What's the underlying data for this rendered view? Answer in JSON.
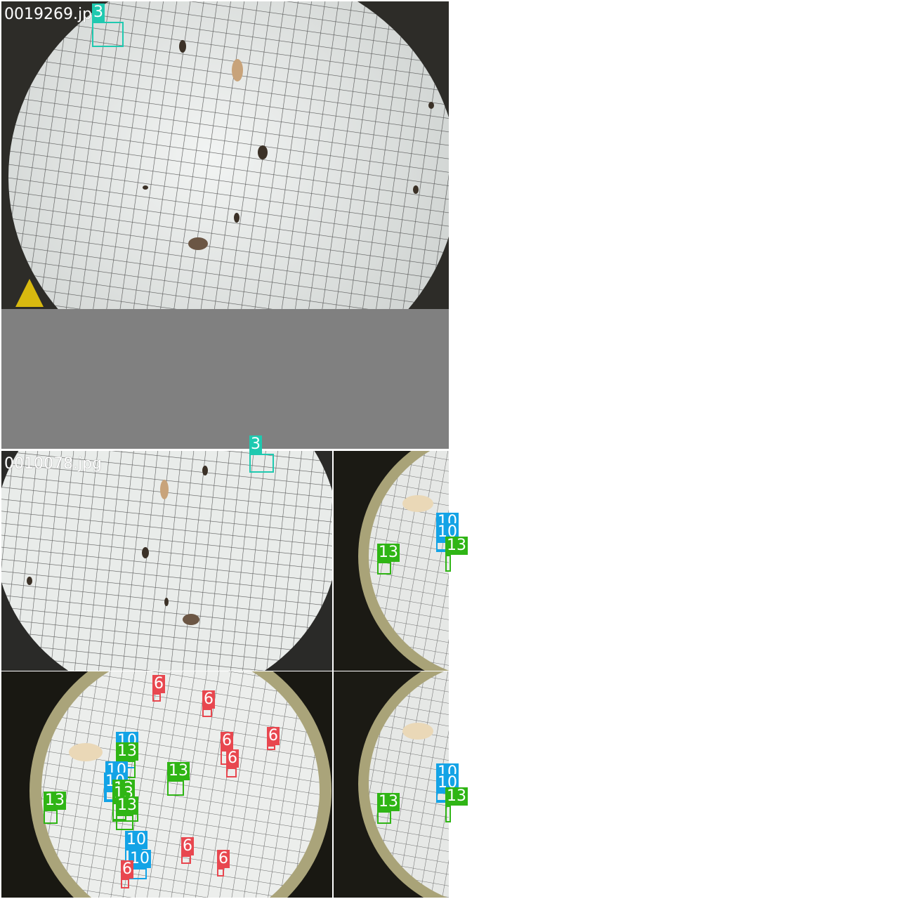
{
  "mosaic": {
    "tiles": [
      {
        "filename": "0019269.jpg"
      },
      {
        "filename": "0010078.jpg"
      }
    ]
  },
  "classes": {
    "3": {
      "label": "3",
      "color": "#1fc9b0"
    },
    "6": {
      "label": "6",
      "color": "#e8474f"
    },
    "10": {
      "label": "10",
      "color": "#13a3e6"
    },
    "13": {
      "label": "13",
      "color": "#2fb515"
    }
  },
  "detections": [
    {
      "cls": "3"
    },
    {
      "cls": "3"
    },
    {
      "cls": "10"
    },
    {
      "cls": "10"
    },
    {
      "cls": "13"
    },
    {
      "cls": "13"
    },
    {
      "cls": "6"
    },
    {
      "cls": "6"
    },
    {
      "cls": "6"
    },
    {
      "cls": "6"
    },
    {
      "cls": "6"
    },
    {
      "cls": "10"
    },
    {
      "cls": "13"
    },
    {
      "cls": "10"
    },
    {
      "cls": "10"
    },
    {
      "cls": "13"
    },
    {
      "cls": "13"
    },
    {
      "cls": "13"
    },
    {
      "cls": "13"
    },
    {
      "cls": "13"
    },
    {
      "cls": "10"
    },
    {
      "cls": "10"
    },
    {
      "cls": "6"
    },
    {
      "cls": "6"
    },
    {
      "cls": "6"
    },
    {
      "cls": "10"
    },
    {
      "cls": "10"
    },
    {
      "cls": "13"
    },
    {
      "cls": "13"
    }
  ]
}
